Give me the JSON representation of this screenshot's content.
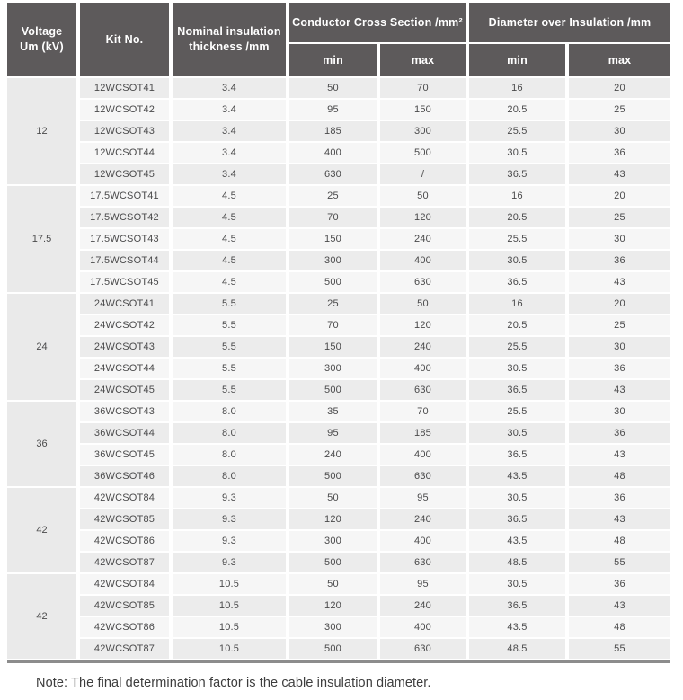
{
  "table": {
    "header": {
      "voltage_line1": "Voltage",
      "voltage_line2": "Um (kV)",
      "kit": "Kit No.",
      "thickness_line1": "Nominal insulation",
      "thickness_line2": "thickness /mm",
      "ccs": "Conductor Cross Section /mm²",
      "doi": "Diameter over Insulation /mm",
      "subcols": [
        "min",
        "max",
        "min",
        "max"
      ]
    },
    "groups": [
      {
        "voltage": "12",
        "rows": [
          {
            "kit": "12WCSOT41",
            "thickness": "3.4",
            "ccs_min": "50",
            "ccs_max": "70",
            "doi_min": "16",
            "doi_max": "20"
          },
          {
            "kit": "12WCSOT42",
            "thickness": "3.4",
            "ccs_min": "95",
            "ccs_max": "150",
            "doi_min": "20.5",
            "doi_max": "25"
          },
          {
            "kit": "12WCSOT43",
            "thickness": "3.4",
            "ccs_min": "185",
            "ccs_max": "300",
            "doi_min": "25.5",
            "doi_max": "30"
          },
          {
            "kit": "12WCSOT44",
            "thickness": "3.4",
            "ccs_min": "400",
            "ccs_max": "500",
            "doi_min": "30.5",
            "doi_max": "36"
          },
          {
            "kit": "12WCSOT45",
            "thickness": "3.4",
            "ccs_min": "630",
            "ccs_max": "/",
            "doi_min": "36.5",
            "doi_max": "43"
          }
        ]
      },
      {
        "voltage": "17.5",
        "rows": [
          {
            "kit": "17.5WCSOT41",
            "thickness": "4.5",
            "ccs_min": "25",
            "ccs_max": "50",
            "doi_min": "16",
            "doi_max": "20"
          },
          {
            "kit": "17.5WCSOT42",
            "thickness": "4.5",
            "ccs_min": "70",
            "ccs_max": "120",
            "doi_min": "20.5",
            "doi_max": "25"
          },
          {
            "kit": "17.5WCSOT43",
            "thickness": "4.5",
            "ccs_min": "150",
            "ccs_max": "240",
            "doi_min": "25.5",
            "doi_max": "30"
          },
          {
            "kit": "17.5WCSOT44",
            "thickness": "4.5",
            "ccs_min": "300",
            "ccs_max": "400",
            "doi_min": "30.5",
            "doi_max": "36"
          },
          {
            "kit": "17.5WCSOT45",
            "thickness": "4.5",
            "ccs_min": "500",
            "ccs_max": "630",
            "doi_min": "36.5",
            "doi_max": "43"
          }
        ]
      },
      {
        "voltage": "24",
        "rows": [
          {
            "kit": "24WCSOT41",
            "thickness": "5.5",
            "ccs_min": "25",
            "ccs_max": "50",
            "doi_min": "16",
            "doi_max": "20"
          },
          {
            "kit": "24WCSOT42",
            "thickness": "5.5",
            "ccs_min": "70",
            "ccs_max": "120",
            "doi_min": "20.5",
            "doi_max": "25"
          },
          {
            "kit": "24WCSOT43",
            "thickness": "5.5",
            "ccs_min": "150",
            "ccs_max": "240",
            "doi_min": "25.5",
            "doi_max": "30"
          },
          {
            "kit": "24WCSOT44",
            "thickness": "5.5",
            "ccs_min": "300",
            "ccs_max": "400",
            "doi_min": "30.5",
            "doi_max": "36"
          },
          {
            "kit": "24WCSOT45",
            "thickness": "5.5",
            "ccs_min": "500",
            "ccs_max": "630",
            "doi_min": "36.5",
            "doi_max": "43"
          }
        ]
      },
      {
        "voltage": "36",
        "rows": [
          {
            "kit": "36WCSOT43",
            "thickness": "8.0",
            "ccs_min": "35",
            "ccs_max": "70",
            "doi_min": "25.5",
            "doi_max": "30"
          },
          {
            "kit": "36WCSOT44",
            "thickness": "8.0",
            "ccs_min": "95",
            "ccs_max": "185",
            "doi_min": "30.5",
            "doi_max": "36"
          },
          {
            "kit": "36WCSOT45",
            "thickness": "8.0",
            "ccs_min": "240",
            "ccs_max": "400",
            "doi_min": "36.5",
            "doi_max": "43"
          },
          {
            "kit": "36WCSOT46",
            "thickness": "8.0",
            "ccs_min": "500",
            "ccs_max": "630",
            "doi_min": "43.5",
            "doi_max": "48"
          }
        ]
      },
      {
        "voltage": "42",
        "rows": [
          {
            "kit": "42WCSOT84",
            "thickness": "9.3",
            "ccs_min": "50",
            "ccs_max": "95",
            "doi_min": "30.5",
            "doi_max": "36"
          },
          {
            "kit": "42WCSOT85",
            "thickness": "9.3",
            "ccs_min": "120",
            "ccs_max": "240",
            "doi_min": "36.5",
            "doi_max": "43"
          },
          {
            "kit": "42WCSOT86",
            "thickness": "9.3",
            "ccs_min": "300",
            "ccs_max": "400",
            "doi_min": "43.5",
            "doi_max": "48"
          },
          {
            "kit": "42WCSOT87",
            "thickness": "9.3",
            "ccs_min": "500",
            "ccs_max": "630",
            "doi_min": "48.5",
            "doi_max": "55"
          }
        ]
      },
      {
        "voltage": "42",
        "rows": [
          {
            "kit": "42WCSOT84",
            "thickness": "10.5",
            "ccs_min": "50",
            "ccs_max": "95",
            "doi_min": "30.5",
            "doi_max": "36"
          },
          {
            "kit": "42WCSOT85",
            "thickness": "10.5",
            "ccs_min": "120",
            "ccs_max": "240",
            "doi_min": "36.5",
            "doi_max": "43"
          },
          {
            "kit": "42WCSOT86",
            "thickness": "10.5",
            "ccs_min": "300",
            "ccs_max": "400",
            "doi_min": "43.5",
            "doi_max": "48"
          },
          {
            "kit": "42WCSOT87",
            "thickness": "10.5",
            "ccs_min": "500",
            "ccs_max": "630",
            "doi_min": "48.5",
            "doi_max": "55"
          }
        ]
      }
    ]
  },
  "note": "Note: The final determination factor is the cable insulation diameter.",
  "colors": {
    "header_bg": "#5d5a5b",
    "row_shade": "#ececec",
    "row_plain": "#f6f6f6",
    "voltage_bg": "#eaeaea",
    "bottom_border": "#8c8c8c"
  }
}
